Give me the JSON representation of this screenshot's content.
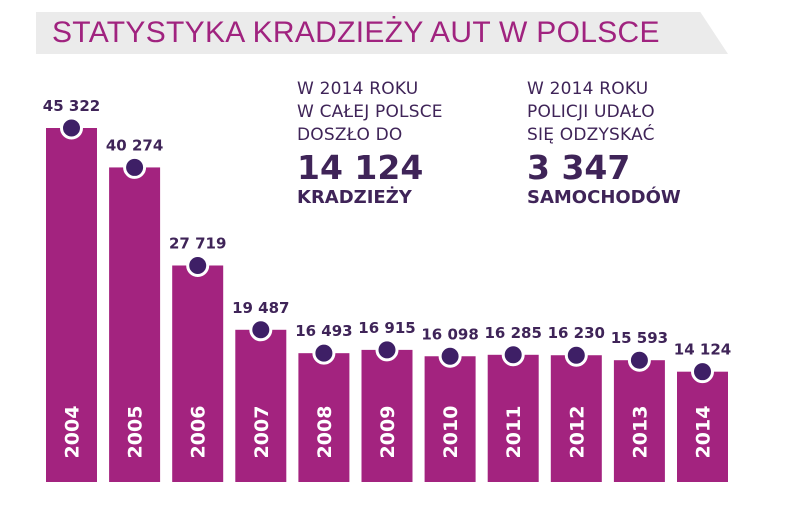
{
  "title": "STATYSTYKA KRADZIEŻY AUT W POLSCE",
  "colors": {
    "bar": "#a3237f",
    "marker": "#3e1f66",
    "value_text": "#3f2458",
    "title": "#a0237f",
    "year_text": "#ffffff"
  },
  "info_left": {
    "lines": [
      "W 2014 ROKU",
      "W CAŁEJ POLSCE",
      "DOSZŁO DO"
    ],
    "number": "14 124",
    "unit": "KRADZIEŻY"
  },
  "info_right": {
    "lines": [
      "W 2014 ROKU",
      "POLICJI UDAŁO",
      "SIĘ ODZYSKAĆ"
    ],
    "number": "3 347",
    "unit": "SAMOCHODÓW"
  },
  "chart_data": {
    "type": "bar",
    "categories": [
      "2004",
      "2005",
      "2006",
      "2007",
      "2008",
      "2009",
      "2010",
      "2011",
      "2012",
      "2013",
      "2014"
    ],
    "values": [
      45322,
      40274,
      27719,
      19487,
      16493,
      16915,
      16098,
      16285,
      16230,
      15593,
      14124
    ],
    "value_labels": [
      "45 322",
      "40 274",
      "27 719",
      "19 487",
      "16 493",
      "16 915",
      "16 098",
      "16 285",
      "16 230",
      "15 593",
      "14 124"
    ],
    "ylim": [
      0,
      45322
    ],
    "grid": false,
    "legend": "none"
  }
}
